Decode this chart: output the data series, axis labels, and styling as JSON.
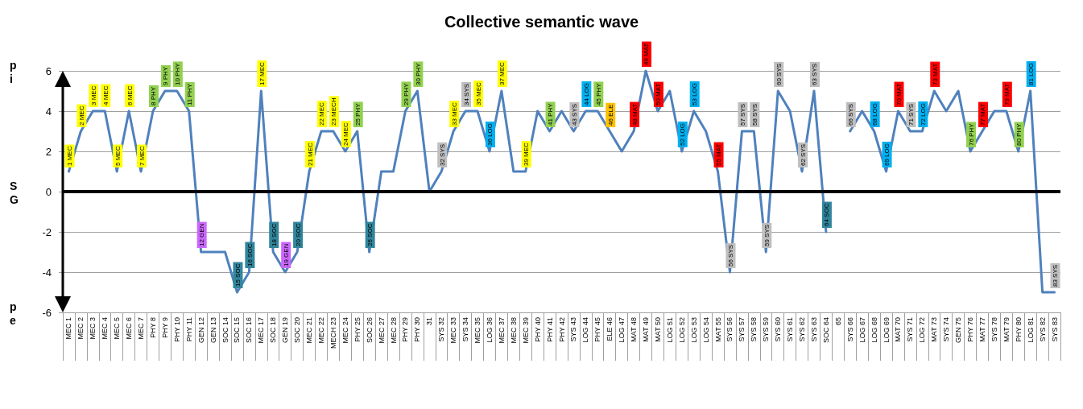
{
  "chart_data": {
    "type": "line",
    "title": "Collective semantic wave",
    "categories": [
      "MEC 1",
      "MEC 2",
      "MEC 3",
      "MEC 4",
      "MEC 5",
      "MEC 6",
      "MEC 7",
      "PHY 8",
      "PHY 9",
      "PHY 10",
      "PHY 11",
      "GEN 12",
      "GEN 13",
      "SOC 14",
      "SOC 15",
      "SOC 16",
      "MEC 17",
      "SOC 18",
      "GEN 19",
      "SOC 20",
      "MEC 21",
      "MEC 22",
      "MECH 23",
      "MEC 24",
      "PHY 25",
      "SOC 26",
      "MEC 27",
      "MEC 28",
      "PHY 29",
      "PHY 30",
      "31",
      "SYS 32",
      "MEC 33",
      "SYS 34",
      "MEC 35",
      "LOG 36",
      "MEC 37",
      "MEC 38",
      "MEC 39",
      "PHY 40",
      "PHY 41",
      "PHY 42",
      "SYS 43",
      "LOG 44",
      "PHY 45",
      "ELE 46",
      "LOG 47",
      "MAT 48",
      "MAT 49",
      "MAT 50",
      "LOG 51",
      "LOG 52",
      "LOG 53",
      "LOG 54",
      "MAT 55",
      "SYS 56",
      "SYS 57",
      "SYS 58",
      "SYS 59",
      "SYS 60",
      "SYS 61",
      "SYS 62",
      "SYS 63",
      "SOC 64",
      "65",
      "SYS 66",
      "LOG 67",
      "LOG 68",
      "LOG 69",
      "MAT 70",
      "SYS 71",
      "LOG 72",
      "MAT 73",
      "SYS 74",
      "GEN 75",
      "PHY 76",
      "MAT 77",
      "SYS 78",
      "MAT 79",
      "PHY 80",
      "LOG 81",
      "SYS 82",
      "SYS 83"
    ],
    "series": [
      {
        "color": "#4f81bd",
        "values": [
          1,
          3,
          4,
          4,
          1,
          4,
          1,
          4,
          5,
          5,
          4,
          -3,
          -3,
          -3,
          -5,
          -4,
          5,
          -3,
          -4,
          -3,
          1,
          3,
          3,
          2,
          3,
          -3,
          1,
          1,
          4,
          5,
          0,
          1,
          3,
          4,
          4,
          2,
          5,
          1,
          1,
          4,
          3,
          4,
          3,
          4,
          4,
          3,
          2,
          3,
          6,
          4,
          5,
          2,
          4,
          3,
          1,
          -4,
          3,
          3,
          -3,
          5,
          4,
          1,
          5,
          -2,
          null,
          3,
          4,
          3,
          1,
          4,
          3,
          3,
          5,
          4,
          5,
          2,
          3,
          4,
          4,
          2,
          5,
          -5,
          -5
        ],
        "colors": [
          "#ffff00",
          "#ffff00",
          "#ffff00",
          "#ffff00",
          "#ffff00",
          "#ffff00",
          "#ffff00",
          "#92d050",
          "#92d050",
          "#92d050",
          "#92d050",
          "#cc66ff",
          null,
          null,
          "#31859c",
          "#31859c",
          "#ffff00",
          "#31859c",
          "#cc66ff",
          "#31859c",
          "#ffff00",
          "#ffff00",
          "#ffff00",
          "#ffff00",
          "#92d050",
          "#31859c",
          null,
          null,
          "#92d050",
          "#92d050",
          null,
          "#bfbfbf",
          "#ffff00",
          "#bfbfbf",
          "#ffff00",
          "#00b0f0",
          "#ffff00",
          null,
          "#ffff00",
          null,
          "#92d050",
          null,
          "#bfbfbf",
          "#00b0f0",
          "#92d050",
          "#ffc000",
          null,
          "#ff0000",
          "#ff0000",
          "#ff0000",
          null,
          "#00b0f0",
          "#00b0f0",
          null,
          "#ff0000",
          "#bfbfbf",
          "#bfbfbf",
          "#bfbfbf",
          "#bfbfbf",
          "#bfbfbf",
          null,
          "#bfbfbf",
          "#bfbfbf",
          "#31859c",
          null,
          "#bfbfbf",
          null,
          "#00b0f0",
          "#00b0f0",
          "#ff0000",
          "#bfbfbf",
          "#00b0f0",
          "#ff0000",
          null,
          null,
          "#92d050",
          "#ff0000",
          null,
          "#ff0000",
          "#92d050",
          "#00b0f0",
          null,
          "#bfbfbf"
        ]
      }
    ],
    "ylim": [
      -6,
      6
    ],
    "yticks": [
      -6,
      -4,
      -2,
      0,
      2,
      4,
      6
    ],
    "grid": "y",
    "marker": "none",
    "line_style": "solid",
    "ref_lines": [
      {
        "axis": "y",
        "value": 0,
        "color": "#000000"
      }
    ],
    "annotations": [
      "pi",
      "SG",
      "pe",
      {
        "text": "1 MEC",
        "x": "MEC 1",
        "y": 1
      },
      {
        "text": "2 MEC",
        "x": "MEC 2",
        "y": 3
      },
      {
        "text": "3 MEC",
        "x": "MEC 3",
        "y": 4
      },
      {
        "text": "4 MEC",
        "x": "MEC 4",
        "y": 4
      },
      {
        "text": "5 MEC",
        "x": "MEC 5",
        "y": 1
      },
      {
        "text": "6 MEC",
        "x": "MEC 6",
        "y": 4
      },
      {
        "text": "7 MEC",
        "x": "MEC 7",
        "y": 1
      },
      {
        "text": "8 PHY",
        "x": "PHY 8",
        "y": 4
      },
      {
        "text": "9 PHY",
        "x": "PHY 9",
        "y": 5
      },
      {
        "text": "10 PHY",
        "x": "PHY 10",
        "y": 5
      },
      {
        "text": "11 PHY",
        "x": "PHY 11",
        "y": 4
      },
      {
        "text": "12 GEN",
        "x": "GEN 12",
        "y": -3
      },
      {
        "text": "15 SOC",
        "x": "SOC 15",
        "y": -5
      },
      {
        "text": "16 SOC",
        "x": "SOC 16",
        "y": -4
      },
      {
        "text": "17 MEC",
        "x": "MEC 17",
        "y": 5
      },
      {
        "text": "18 SOC",
        "x": "SOC 18",
        "y": -3
      },
      {
        "text": "19 GEN",
        "x": "GEN 19",
        "y": -4
      },
      {
        "text": "20 SOC",
        "x": "SOC 20",
        "y": -3
      },
      {
        "text": "21 MEC",
        "x": "MEC 21",
        "y": 1
      },
      {
        "text": "22 MEC",
        "x": "MEC 22",
        "y": 3
      },
      {
        "text": "23 MECH",
        "x": "MECH 23",
        "y": 3
      },
      {
        "text": "24 MEC",
        "x": "MEC 24",
        "y": 2
      },
      {
        "text": "25 PHY",
        "x": "PHY 25",
        "y": 3
      },
      {
        "text": "26 SOC",
        "x": "SOC 26",
        "y": -3
      },
      {
        "text": "29 PHY",
        "x": "PHY 29",
        "y": 4
      },
      {
        "text": "30 PHY",
        "x": "PHY 30",
        "y": 5
      },
      {
        "text": "32 SYS",
        "x": "SYS 32",
        "y": 1
      },
      {
        "text": "33 MEC",
        "x": "MEC 33",
        "y": 3
      },
      {
        "text": "34 SYS",
        "x": "SYS 34",
        "y": 4
      },
      {
        "text": "35 MEC",
        "x": "MEC 35",
        "y": 4
      },
      {
        "text": "36 LOG",
        "x": "LOG 36",
        "y": 2
      },
      {
        "text": "37 MEC",
        "x": "MEC 37",
        "y": 5
      },
      {
        "text": "39 MEC",
        "x": "MEC 39",
        "y": 1
      },
      {
        "text": "41 PHY",
        "x": "PHY 41",
        "y": 3
      },
      {
        "text": "43 SYS",
        "x": "SYS 43",
        "y": 3
      },
      {
        "text": "44 LOG",
        "x": "LOG 44",
        "y": 4
      },
      {
        "text": "45 PHY",
        "x": "PHY 45",
        "y": 4
      },
      {
        "text": "46 ELE",
        "x": "ELE 46",
        "y": 3
      },
      {
        "text": "48 MAT",
        "x": "MAT 48",
        "y": 3
      },
      {
        "text": "49 MAT",
        "x": "MAT 49",
        "y": 6
      },
      {
        "text": "50 MAT",
        "x": "MAT 50",
        "y": 4
      },
      {
        "text": "52 LOG",
        "x": "LOG 52",
        "y": 2
      },
      {
        "text": "53 LOG",
        "x": "LOG 53",
        "y": 4
      },
      {
        "text": "55 MAT",
        "x": "MAT 55",
        "y": 1
      },
      {
        "text": "56 SYS",
        "x": "SYS 56",
        "y": -4
      },
      {
        "text": "57 SYS",
        "x": "SYS 57",
        "y": 3
      },
      {
        "text": "58 SYS",
        "x": "SYS 58",
        "y": 3
      },
      {
        "text": "59 SYS",
        "x": "SYS 59",
        "y": -3
      },
      {
        "text": "60 SYS",
        "x": "SYS 60",
        "y": 5
      },
      {
        "text": "62 SYS",
        "x": "SYS 62",
        "y": 1
      },
      {
        "text": "63 SYS",
        "x": "SYS 63",
        "y": 5
      },
      {
        "text": "64 SOC",
        "x": "SOC 64",
        "y": -2
      },
      {
        "text": "66 SYS",
        "x": "SYS 66",
        "y": 3
      },
      {
        "text": "68 LOG",
        "x": "LOG 68",
        "y": 3
      },
      {
        "text": "69 LOG",
        "x": "LOG 69",
        "y": 1
      },
      {
        "text": "70 MAT",
        "x": "MAT 70",
        "y": 4
      },
      {
        "text": "71 SYS",
        "x": "SYS 71",
        "y": 3
      },
      {
        "text": "72 LOG",
        "x": "LOG 72",
        "y": 3
      },
      {
        "text": "73 MAT",
        "x": "MAT 73",
        "y": 5
      },
      {
        "text": "76 PHY",
        "x": "PHY 76",
        "y": 2
      },
      {
        "text": "77 MAT",
        "x": "MAT 77",
        "y": 3
      },
      {
        "text": "79 MAT",
        "x": "MAT 79",
        "y": 4
      },
      {
        "text": "80 PHY",
        "x": "PHY 80",
        "y": 2
      },
      {
        "text": "81 LOG",
        "x": "LOG 81",
        "y": 5
      },
      {
        "text": "83 SYS",
        "x": "SYS 83",
        "y": -5
      }
    ]
  }
}
